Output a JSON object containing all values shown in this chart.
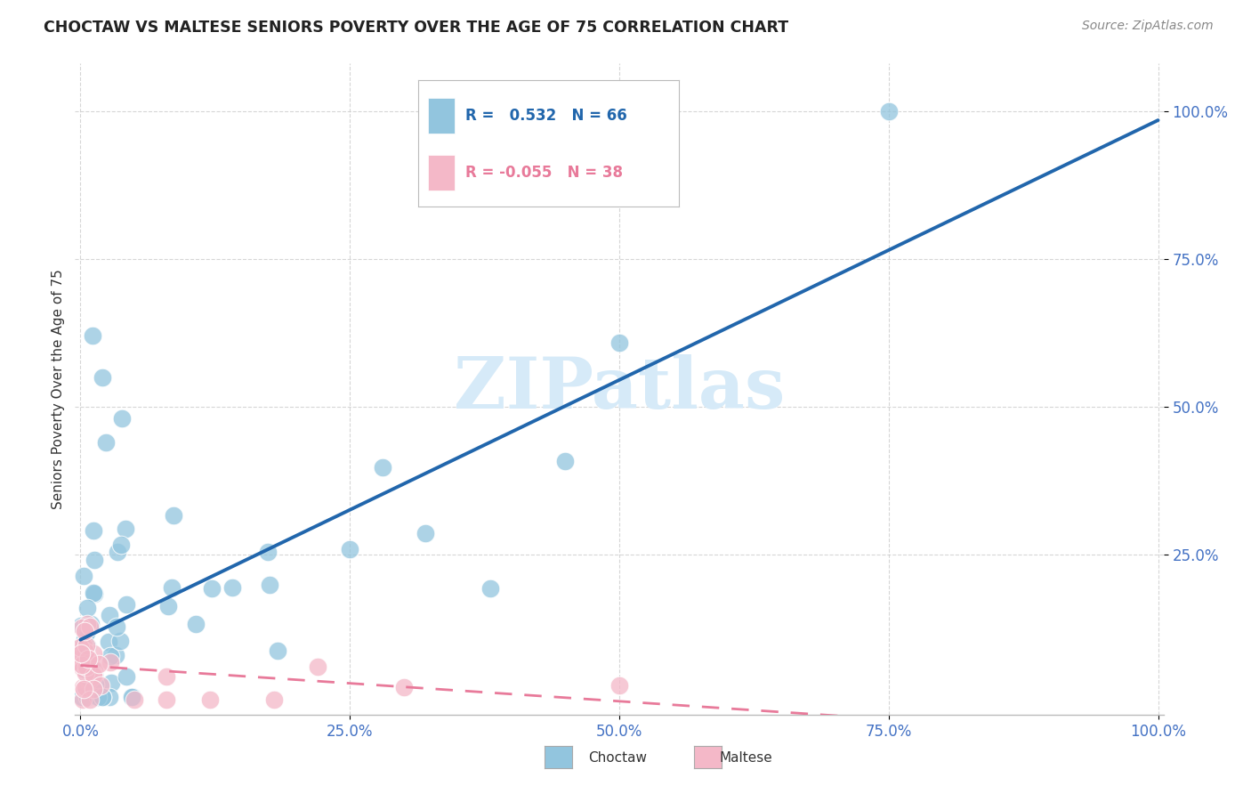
{
  "title": "CHOCTAW VS MALTESE SENIORS POVERTY OVER THE AGE OF 75 CORRELATION CHART",
  "source": "Source: ZipAtlas.com",
  "ylabel": "Seniors Poverty Over the Age of 75",
  "choctaw_R": 0.532,
  "choctaw_N": 66,
  "maltese_R": -0.055,
  "maltese_N": 38,
  "choctaw_color": "#92c5de",
  "maltese_color": "#f4b8c8",
  "choctaw_line_color": "#2166ac",
  "maltese_line_color": "#e87a9a",
  "watermark_color": "#d6eaf8",
  "tick_color": "#4472c4",
  "grid_color": "#cccccc",
  "title_color": "#222222",
  "source_color": "#888888",
  "ylabel_color": "#333333"
}
